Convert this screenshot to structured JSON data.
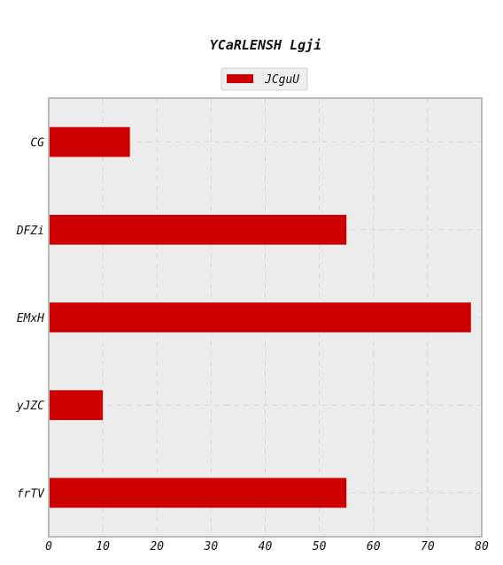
{
  "chart_data": {
    "type": "bar",
    "orientation": "horizontal",
    "title": "YCaRLENSH Lgji",
    "xlabel": "",
    "ylabel": "",
    "categories": [
      "CG",
      "DFZi",
      "EMxH",
      "yJZC",
      "frTV"
    ],
    "series": [
      {
        "name": "JCguU",
        "values": [
          15,
          55,
          78,
          10,
          55
        ],
        "color": "#cc0000"
      }
    ],
    "xlim": [
      0,
      80
    ],
    "xticks": [
      0,
      10,
      20,
      30,
      40,
      50,
      60,
      70,
      80
    ],
    "grid": true,
    "legend_position": "top-center",
    "colors": {
      "plot_background": "#ececec",
      "plot_border": "#bbbbbb",
      "grid": "#d9d9d9",
      "legend_background": "#eeeeee"
    }
  }
}
